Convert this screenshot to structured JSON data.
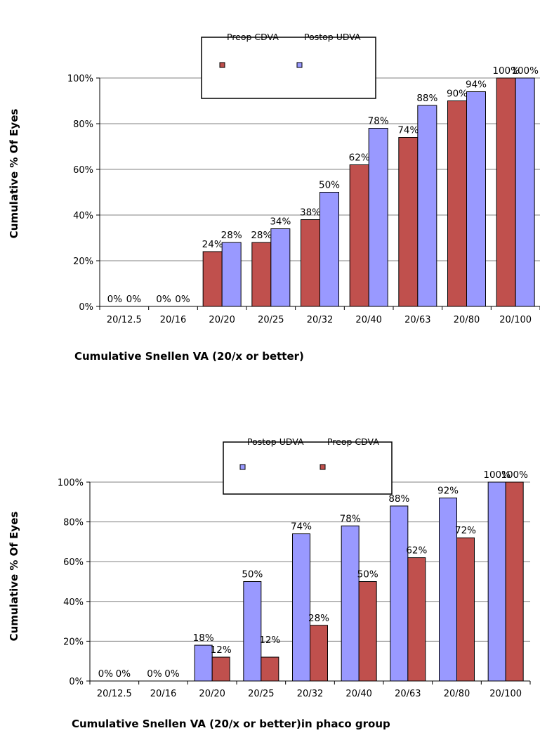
{
  "colors": {
    "preop": "#c0504d",
    "postop": "#9999ff",
    "stroke": "#000000",
    "grid": "#808080"
  },
  "chart_data": [
    {
      "type": "bar",
      "categories": [
        "20/12.5",
        "20/16",
        "20/20",
        "20/25",
        "20/32",
        "20/40",
        "20/63",
        "20/80",
        "20/100"
      ],
      "series": [
        {
          "name": "Preop CDVA",
          "values": [
            0,
            0,
            24,
            28,
            38,
            62,
            74,
            90,
            100
          ],
          "labels": [
            "0%",
            "0%",
            "24%",
            "28%",
            "38%",
            "62%",
            "74%",
            "90%",
            "100%"
          ]
        },
        {
          "name": "Postop UDVA",
          "values": [
            0,
            0,
            28,
            34,
            50,
            78,
            88,
            94,
            100
          ],
          "labels": [
            "0%",
            "0%",
            "28%",
            "34%",
            "50%",
            "78%",
            "88%",
            "94%",
            "100%"
          ]
        }
      ],
      "ylim": [
        0,
        100
      ],
      "yticks": [
        "0%",
        "20%",
        "40%",
        "60%",
        "80%",
        "100%"
      ],
      "ylabel": "Cumulative % Of Eyes",
      "xlabel": "Cumulative Snellen VA (20/x or better)",
      "legend": "top-center",
      "grid": true
    },
    {
      "type": "bar",
      "categories": [
        "20/12.5",
        "20/16",
        "20/20",
        "20/25",
        "20/32",
        "20/40",
        "20/63",
        "20/80",
        "20/100"
      ],
      "series": [
        {
          "name": "Postop UDVA",
          "values": [
            0,
            0,
            18,
            50,
            74,
            78,
            88,
            92,
            100
          ],
          "labels": [
            "0%",
            "0%",
            "18%",
            "50%",
            "74%",
            "78%",
            "88%",
            "92%",
            "100%"
          ]
        },
        {
          "name": "Preop CDVA",
          "values": [
            0,
            0,
            12,
            12,
            28,
            50,
            62,
            72,
            100
          ],
          "labels": [
            "0%",
            "0%",
            "12%",
            "12%",
            "28%",
            "50%",
            "62%",
            "72%",
            "100%"
          ]
        }
      ],
      "ylim": [
        0,
        100
      ],
      "yticks": [
        "0%",
        "20%",
        "40%",
        "60%",
        "80%",
        "100%"
      ],
      "ylabel": "Cumulative % Of Eyes",
      "xlabel": "Cumulative Snellen VA (20/x or better)in phaco group",
      "legend": "top-center",
      "grid": true
    }
  ]
}
